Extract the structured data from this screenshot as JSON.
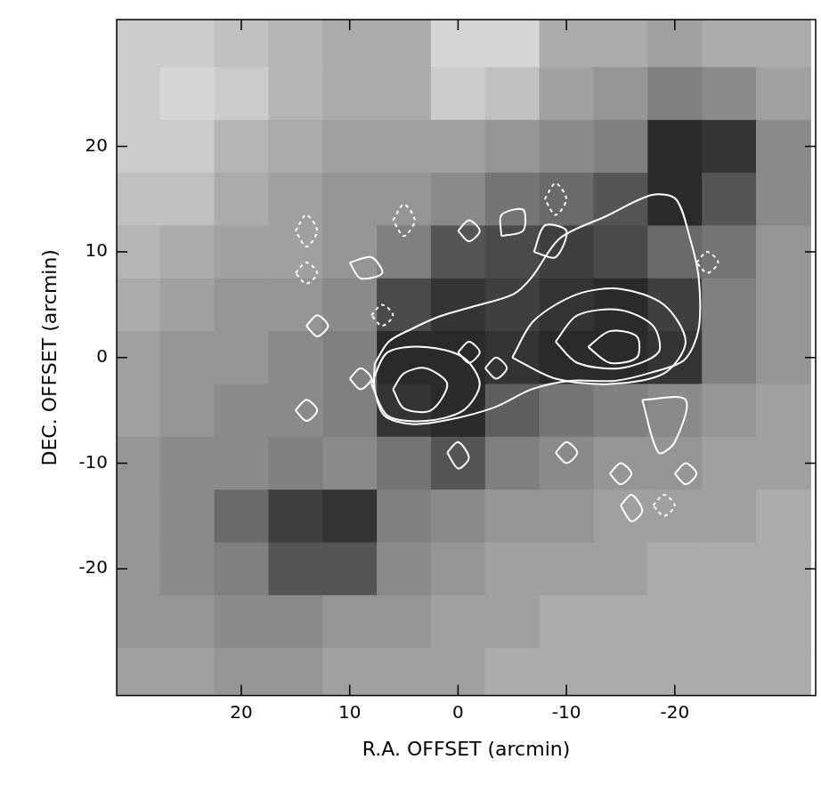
{
  "chart_data": {
    "type": "contour",
    "x_label": "R.A. OFFSET (arcmin)",
    "y_label": "DEC. OFFSET (arcmin)",
    "xlim": [
      31.5,
      -33
    ],
    "ylim": [
      -32,
      32
    ],
    "xticks": [
      20,
      10,
      0,
      -10,
      -20
    ],
    "yticks": [
      -20,
      -10,
      0,
      10,
      20
    ],
    "grid": false,
    "image": {
      "x": [
        30,
        25,
        20,
        15,
        10,
        5,
        0,
        -5,
        -10,
        -15,
        -20,
        -25,
        -30
      ],
      "y": [
        30,
        25,
        20,
        15,
        10,
        5,
        0,
        -5,
        -10,
        -15,
        -20,
        -25,
        -30
      ],
      "values": [
        [
          0.15,
          0.15,
          0.2,
          0.25,
          0.3,
          0.3,
          0.1,
          0.1,
          0.3,
          0.3,
          0.35,
          0.3,
          0.3
        ],
        [
          0.15,
          0.1,
          0.15,
          0.25,
          0.3,
          0.3,
          0.15,
          0.2,
          0.35,
          0.4,
          0.5,
          0.45,
          0.35
        ],
        [
          0.15,
          0.15,
          0.25,
          0.3,
          0.35,
          0.35,
          0.35,
          0.4,
          0.45,
          0.5,
          0.9,
          0.85,
          0.45
        ],
        [
          0.2,
          0.2,
          0.3,
          0.35,
          0.4,
          0.4,
          0.45,
          0.55,
          0.6,
          0.7,
          0.9,
          0.7,
          0.45
        ],
        [
          0.25,
          0.3,
          0.35,
          0.35,
          0.4,
          0.5,
          0.7,
          0.75,
          0.8,
          0.75,
          0.6,
          0.55,
          0.4
        ],
        [
          0.3,
          0.35,
          0.4,
          0.4,
          0.45,
          0.75,
          0.85,
          0.8,
          0.85,
          0.9,
          0.8,
          0.5,
          0.4
        ],
        [
          0.35,
          0.4,
          0.4,
          0.45,
          0.5,
          0.9,
          0.9,
          0.85,
          0.9,
          0.9,
          0.85,
          0.5,
          0.4
        ],
        [
          0.35,
          0.4,
          0.45,
          0.45,
          0.5,
          0.85,
          0.9,
          0.65,
          0.55,
          0.5,
          0.45,
          0.4,
          0.35
        ],
        [
          0.4,
          0.45,
          0.45,
          0.5,
          0.45,
          0.55,
          0.7,
          0.5,
          0.45,
          0.4,
          0.4,
          0.35,
          0.35
        ],
        [
          0.4,
          0.45,
          0.6,
          0.8,
          0.85,
          0.5,
          0.45,
          0.4,
          0.4,
          0.35,
          0.35,
          0.35,
          0.3
        ],
        [
          0.4,
          0.45,
          0.5,
          0.7,
          0.7,
          0.45,
          0.4,
          0.35,
          0.35,
          0.35,
          0.3,
          0.3,
          0.3
        ],
        [
          0.4,
          0.4,
          0.45,
          0.45,
          0.4,
          0.4,
          0.35,
          0.35,
          0.3,
          0.3,
          0.3,
          0.3,
          0.3
        ],
        [
          0.35,
          0.35,
          0.4,
          0.4,
          0.35,
          0.35,
          0.35,
          0.3,
          0.3,
          0.3,
          0.3,
          0.3,
          0.3
        ]
      ]
    },
    "contours": [
      {
        "line_style": "solid",
        "points": [
          [
            7.7,
            -0.6
          ],
          [
            6.4,
            1.5
          ],
          [
            4.3,
            2.7
          ],
          [
            1.7,
            3.9
          ],
          [
            -1.3,
            4.8
          ],
          [
            -5.1,
            6.0
          ],
          [
            -6.8,
            7.6
          ],
          [
            -9.4,
            11.3
          ],
          [
            -13.7,
            13.4
          ],
          [
            -17.9,
            15.4
          ],
          [
            -20.1,
            15.0
          ],
          [
            -21.4,
            11.3
          ],
          [
            -22.2,
            7.6
          ],
          [
            -22.2,
            2.7
          ],
          [
            -20.9,
            -0.2
          ],
          [
            -17.9,
            -1.4
          ],
          [
            -14.5,
            -2.2
          ],
          [
            -10.3,
            -2.2
          ],
          [
            -6.8,
            -3.0
          ],
          [
            -3.4,
            -4.7
          ],
          [
            0.9,
            -5.9
          ],
          [
            4.3,
            -6.3
          ],
          [
            6.8,
            -5.5
          ],
          [
            7.7,
            -3.0
          ]
        ]
      },
      {
        "line_style": "solid",
        "points": [
          [
            8,
            -2.5
          ],
          [
            6.5,
            0.5
          ],
          [
            3,
            1
          ],
          [
            -0.5,
            0
          ],
          [
            -2,
            -2.5
          ],
          [
            -0.5,
            -5
          ],
          [
            3,
            -6
          ],
          [
            6.5,
            -5.5
          ]
        ]
      },
      {
        "line_style": "solid",
        "points": [
          [
            -5,
            0
          ],
          [
            -7,
            3.5
          ],
          [
            -11,
            6
          ],
          [
            -15,
            6.5
          ],
          [
            -19,
            5
          ],
          [
            -21,
            1.5
          ],
          [
            -19,
            -1.5
          ],
          [
            -14,
            -2.5
          ],
          [
            -9,
            -2
          ]
        ]
      },
      {
        "line_style": "solid",
        "points": [
          [
            6,
            -3
          ],
          [
            5,
            -1.5
          ],
          [
            3,
            -1
          ],
          [
            1,
            -2.5
          ],
          [
            2.5,
            -5
          ],
          [
            5,
            -4.8
          ]
        ]
      },
      {
        "line_style": "solid",
        "points": [
          [
            -9,
            1.5
          ],
          [
            -11,
            4
          ],
          [
            -15,
            4.5
          ],
          [
            -18,
            3
          ],
          [
            -18.5,
            0.5
          ],
          [
            -15,
            -1
          ],
          [
            -11,
            -0.5
          ]
        ]
      },
      {
        "line_style": "solid",
        "points": [
          [
            -12,
            1
          ],
          [
            -14,
            2.5
          ],
          [
            -16.5,
            2
          ],
          [
            -16.5,
            0
          ],
          [
            -14,
            -0.5
          ]
        ]
      },
      {
        "line_style": "solid",
        "points": [
          [
            -2.5,
            -1
          ],
          [
            -3.5,
            0
          ],
          [
            -4.5,
            -1
          ],
          [
            -3.5,
            -2
          ]
        ]
      },
      {
        "line_style": "solid",
        "points": [
          [
            0,
            0.5
          ],
          [
            -1,
            1.5
          ],
          [
            -2,
            0.5
          ],
          [
            -1,
            -0.5
          ]
        ]
      },
      {
        "line_style": "solid",
        "points": [
          [
            -17,
            -4
          ],
          [
            -18.5,
            -9
          ],
          [
            -20,
            -8
          ],
          [
            -21,
            -4
          ]
        ]
      },
      {
        "line_style": "solid",
        "points": [
          [
            -7,
            10
          ],
          [
            -8,
            12.5
          ],
          [
            -10,
            12
          ],
          [
            -9,
            9.5
          ]
        ]
      },
      {
        "line_style": "solid",
        "points": [
          [
            -4,
            11.5
          ],
          [
            -4,
            13.5
          ],
          [
            -6,
            14
          ],
          [
            -6,
            12
          ]
        ]
      },
      {
        "line_style": "solid",
        "points": [
          [
            14,
            3
          ],
          [
            13,
            4
          ],
          [
            12,
            3
          ],
          [
            13,
            2
          ]
        ]
      },
      {
        "line_style": "solid",
        "points": [
          [
            10,
            9
          ],
          [
            8,
            9.5
          ],
          [
            7,
            8
          ],
          [
            9,
            7.5
          ]
        ]
      },
      {
        "line_style": "solid",
        "points": [
          [
            10,
            -2
          ],
          [
            9,
            -1
          ],
          [
            8,
            -2
          ],
          [
            9,
            -3
          ]
        ]
      },
      {
        "line_style": "solid",
        "points": [
          [
            1,
            -9
          ],
          [
            0,
            -8
          ],
          [
            -1,
            -9.5
          ],
          [
            0,
            -10.5
          ]
        ]
      },
      {
        "line_style": "solid",
        "points": [
          [
            -9,
            -9
          ],
          [
            -10,
            -8
          ],
          [
            -11,
            -9
          ],
          [
            -10,
            -10
          ]
        ]
      },
      {
        "line_style": "solid",
        "points": [
          [
            -14,
            -11
          ],
          [
            -15,
            -10
          ],
          [
            -16,
            -11
          ],
          [
            -15,
            -12
          ]
        ]
      },
      {
        "line_style": "solid",
        "points": [
          [
            -20,
            -11
          ],
          [
            -21,
            -10
          ],
          [
            -22,
            -11
          ],
          [
            -21,
            -12
          ]
        ]
      },
      {
        "line_style": "solid",
        "points": [
          [
            -15,
            -14
          ],
          [
            -16,
            -13
          ],
          [
            -17,
            -14.5
          ],
          [
            -16,
            -15.5
          ]
        ]
      },
      {
        "line_style": "solid",
        "points": [
          [
            15,
            -5
          ],
          [
            14,
            -4
          ],
          [
            13,
            -5
          ],
          [
            14,
            -6
          ]
        ]
      },
      {
        "line_style": "solid",
        "points": [
          [
            0,
            12
          ],
          [
            -1,
            13
          ],
          [
            -2,
            12
          ],
          [
            -1,
            11
          ]
        ]
      },
      {
        "line_style": "dashed",
        "points": [
          [
            15,
            12
          ],
          [
            14,
            13.5
          ],
          [
            13,
            12
          ],
          [
            14,
            10.5
          ]
        ]
      },
      {
        "line_style": "dashed",
        "points": [
          [
            6,
            13
          ],
          [
            5,
            14.5
          ],
          [
            4,
            13
          ],
          [
            5,
            11.5
          ]
        ]
      },
      {
        "line_style": "dashed",
        "points": [
          [
            -8,
            15
          ],
          [
            -9,
            16.5
          ],
          [
            -10,
            15
          ],
          [
            -9,
            13.5
          ]
        ]
      },
      {
        "line_style": "dashed",
        "points": [
          [
            15,
            8
          ],
          [
            14,
            9
          ],
          [
            13,
            8
          ],
          [
            14,
            7
          ]
        ]
      },
      {
        "line_style": "dashed",
        "points": [
          [
            8,
            4
          ],
          [
            7,
            5
          ],
          [
            6,
            4
          ],
          [
            7,
            3
          ]
        ]
      },
      {
        "line_style": "dashed",
        "points": [
          [
            -18,
            -14
          ],
          [
            -19,
            -13
          ],
          [
            -20,
            -14
          ],
          [
            -19,
            -15
          ]
        ]
      },
      {
        "line_style": "dashed",
        "points": [
          [
            -22,
            9
          ],
          [
            -23,
            10
          ],
          [
            -24,
            9
          ],
          [
            -23,
            8
          ]
        ]
      }
    ]
  }
}
